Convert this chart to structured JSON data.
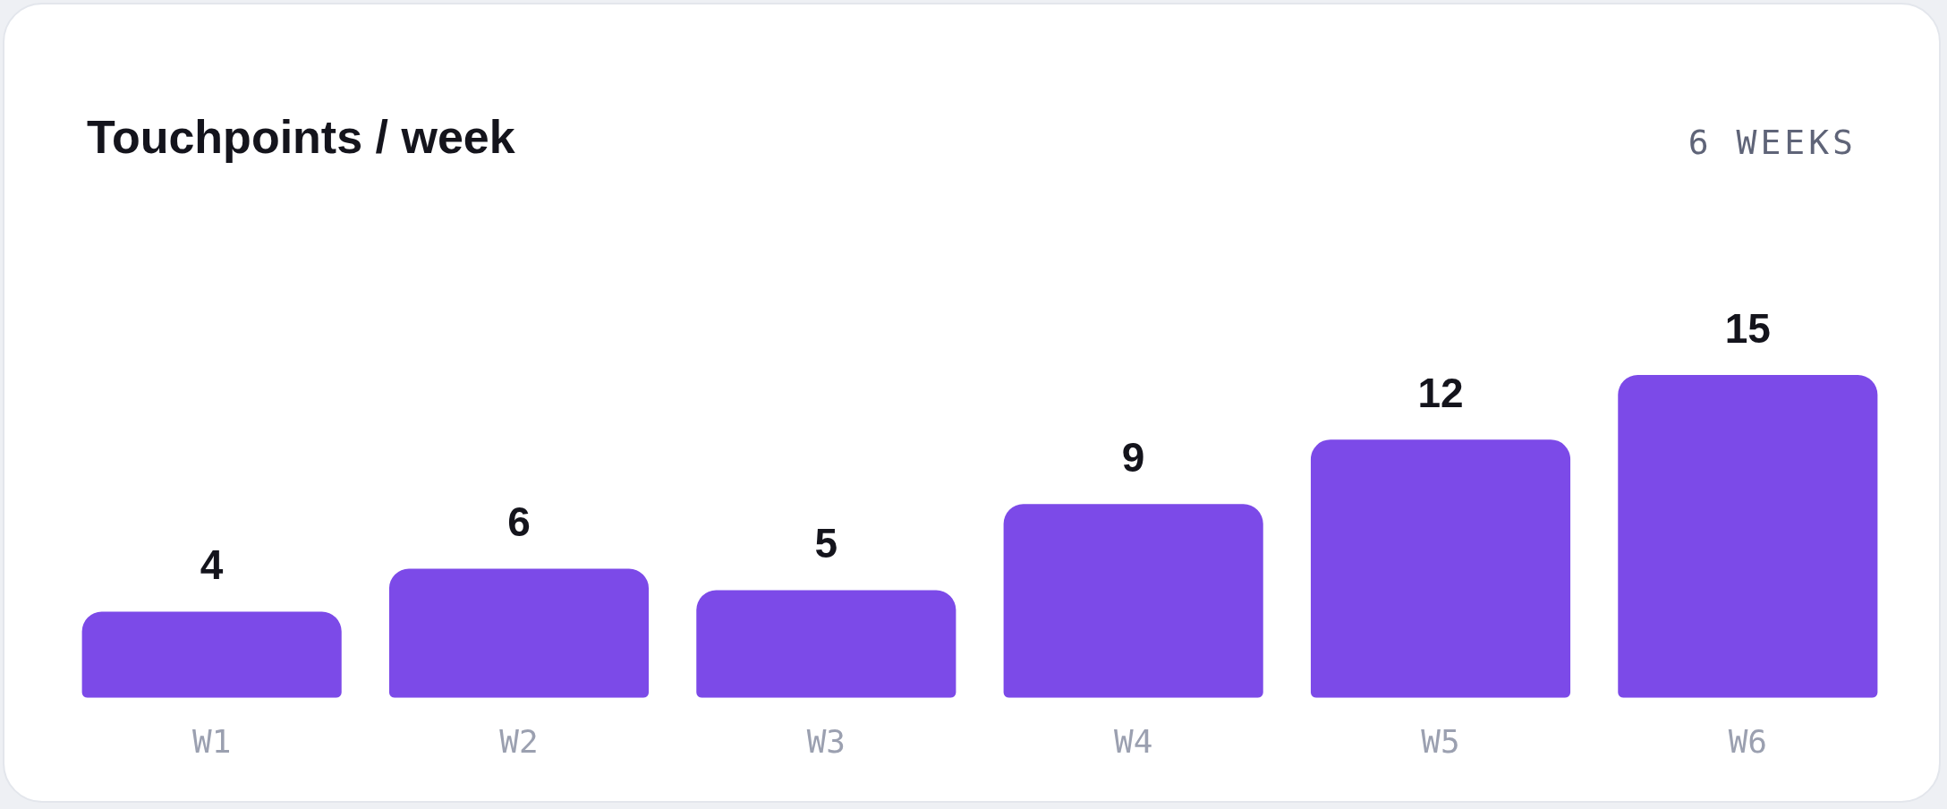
{
  "chart_data": {
    "type": "bar",
    "title": "Touchpoints / week",
    "subtitle": "6 WEEKS",
    "categories": [
      "W1",
      "W2",
      "W3",
      "W4",
      "W5",
      "W6"
    ],
    "values": [
      4,
      6,
      5,
      9,
      12,
      15
    ],
    "color": "#7c4ae8",
    "data_labels": true,
    "grid": false,
    "legend": false
  }
}
